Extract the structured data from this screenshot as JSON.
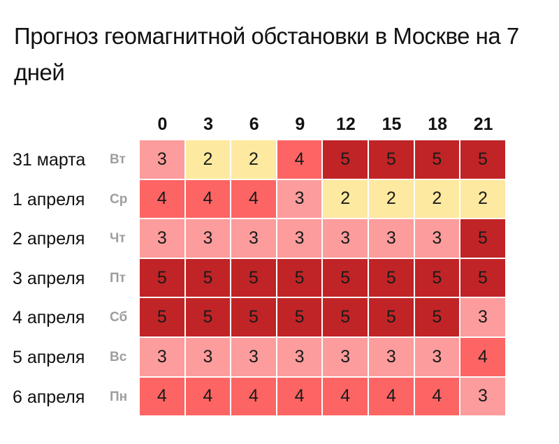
{
  "title": "Прогноз геомагнитной обстановки в Москве на 7 дней",
  "colors": {
    "2": "#fde9a0",
    "3": "#fd9c9c",
    "4": "#fc6564",
    "5": "#c02426"
  },
  "chart_data": {
    "type": "heatmap",
    "title": "Прогноз геомагнитной обстановки в Москве на 7 дней",
    "xlabel": "",
    "ylabel": "",
    "x": [
      "0",
      "3",
      "6",
      "9",
      "12",
      "15",
      "18",
      "21"
    ],
    "y": [
      {
        "date": "31 марта",
        "day": "Вт"
      },
      {
        "date": "1 апреля",
        "day": "Ср"
      },
      {
        "date": "2 апреля",
        "day": "Чт"
      },
      {
        "date": "3 апреля",
        "day": "Пт"
      },
      {
        "date": "4 апреля",
        "day": "Сб"
      },
      {
        "date": "5 апреля",
        "day": "Вс"
      },
      {
        "date": "6 апреля",
        "day": "Пн"
      }
    ],
    "values": [
      [
        3,
        2,
        2,
        4,
        5,
        5,
        5,
        5
      ],
      [
        4,
        4,
        4,
        3,
        2,
        2,
        2,
        2
      ],
      [
        3,
        3,
        3,
        3,
        3,
        3,
        3,
        5
      ],
      [
        5,
        5,
        5,
        5,
        5,
        5,
        5,
        5
      ],
      [
        5,
        5,
        5,
        5,
        5,
        5,
        5,
        3
      ],
      [
        3,
        3,
        3,
        3,
        3,
        3,
        3,
        4
      ],
      [
        4,
        4,
        4,
        4,
        4,
        4,
        4,
        3
      ]
    ],
    "legend": "none",
    "grid": false
  }
}
